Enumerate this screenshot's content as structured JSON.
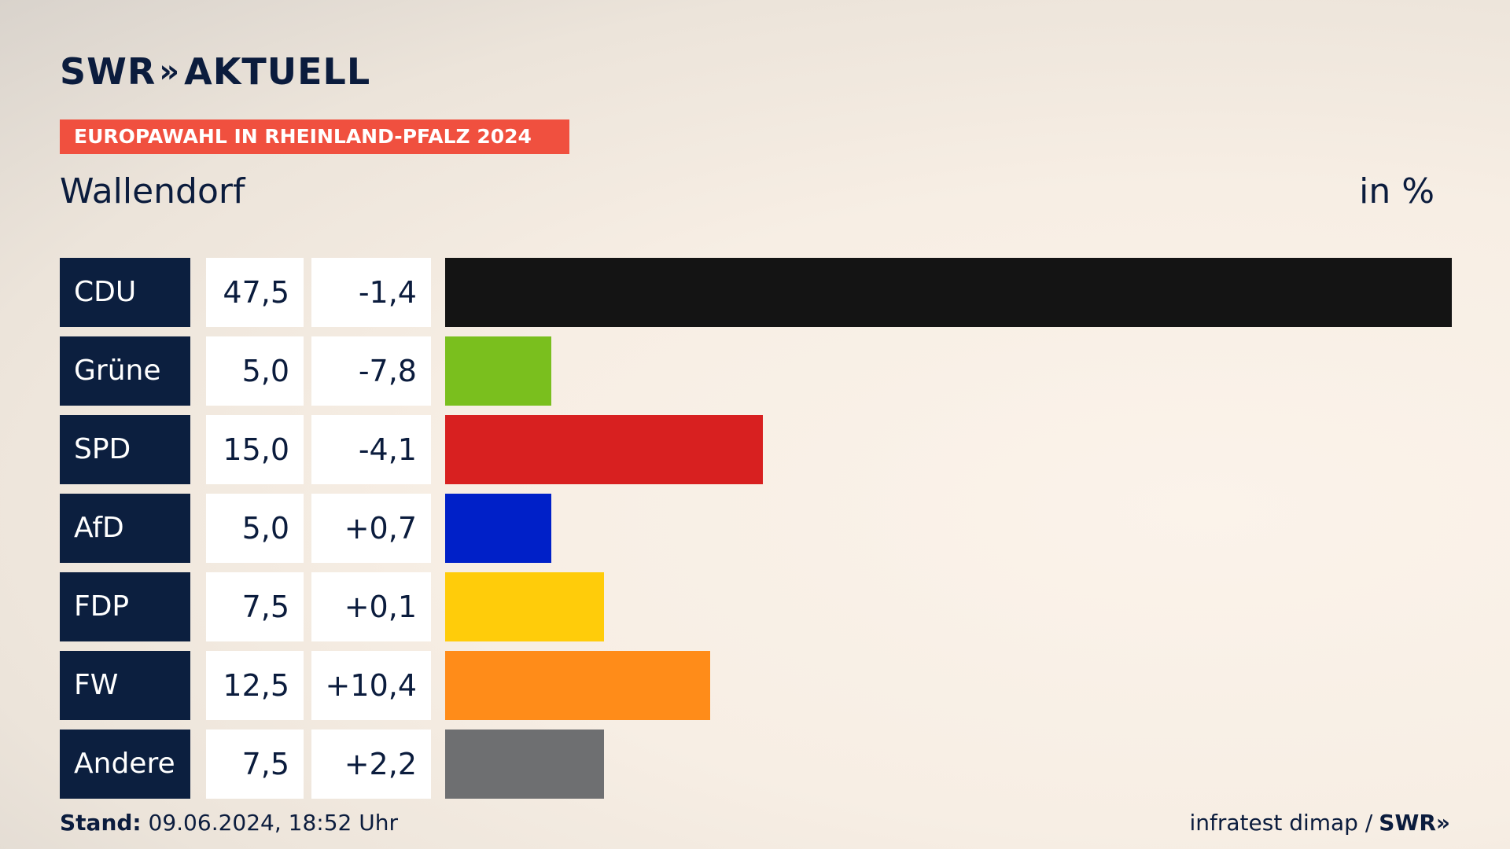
{
  "header": {
    "logo_brand": "SWR",
    "logo_chevrons": "»",
    "logo_text": "AKTUELL",
    "tag": "EUROPAWAHL IN RHEINLAND-PFALZ 2024",
    "place": "Wallendorf",
    "unit": "in %"
  },
  "chart_data": {
    "type": "bar",
    "orientation": "horizontal",
    "title": "Wallendorf",
    "unit": "in %",
    "categories": [
      "CDU",
      "Grüne",
      "SPD",
      "AfD",
      "FDP",
      "FW",
      "Andere"
    ],
    "values": [
      47.5,
      5.0,
      15.0,
      5.0,
      7.5,
      12.5,
      7.5
    ],
    "value_labels": [
      "47,5",
      "5,0",
      "15,0",
      "5,0",
      "7,5",
      "12,5",
      "7,5"
    ],
    "change_labels": [
      "-1,4",
      "-7,8",
      "-4,1",
      "+0,7",
      "+0,1",
      "+10,4",
      "+2,2"
    ],
    "colors": [
      "#141414",
      "#7abf1e",
      "#d82020",
      "#0020c8",
      "#ffcc0a",
      "#ff8c19",
      "#6e6f71"
    ],
    "xlim": [
      0,
      47.5
    ]
  },
  "footer": {
    "stand_label": "Stand:",
    "stand_value": "09.06.2024, 18:52 Uhr",
    "source": "infratest dimap /",
    "source_brand": "SWR»"
  }
}
